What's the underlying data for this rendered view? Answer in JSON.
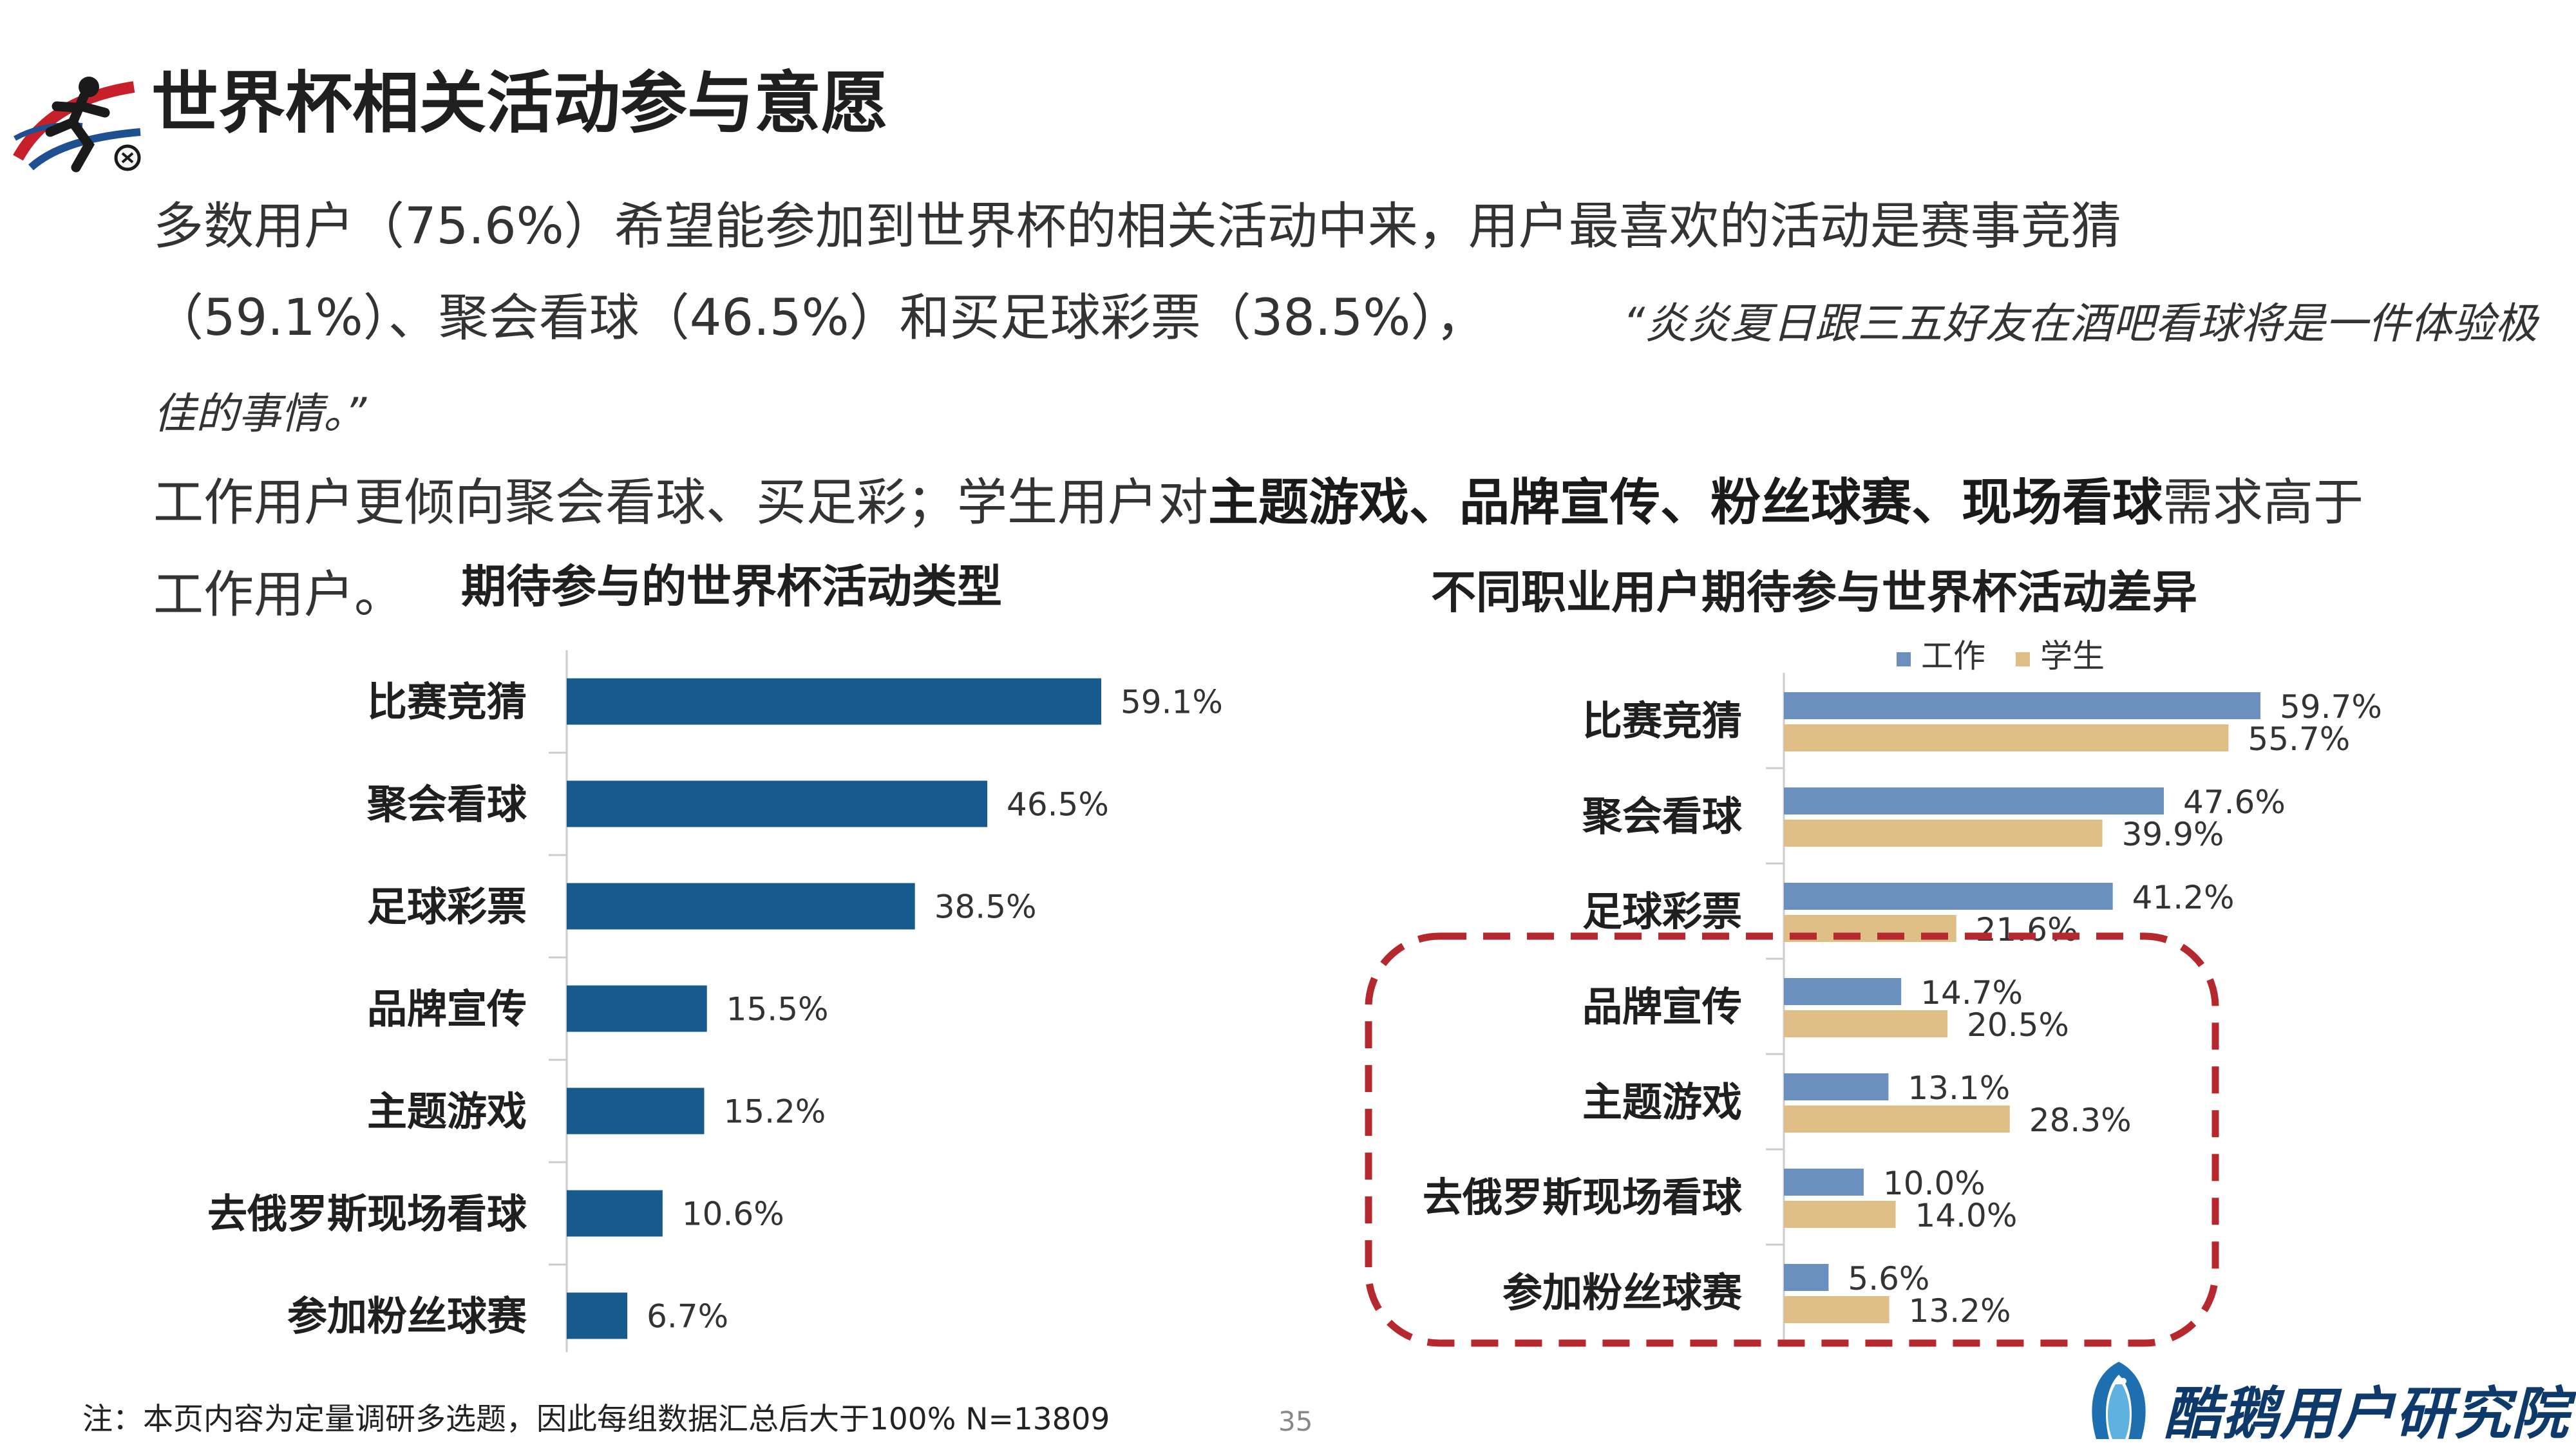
{
  "title": "世界杯相关活动参与意愿",
  "summary": {
    "line1": "多数用户（75.6%）希望能参加到世界杯的相关活动中来，用户最喜欢的活动是赛事竞猜",
    "line2": "（59.1%）、聚会看球（46.5%）和买足球彩票（38.5%），",
    "quote_part1": "“炎炎夏日跟三五好友在酒吧看球将是一件体验极",
    "quote_part2": "佳的事情。”",
    "line3_prefix": "工作用户更倾向聚会看球、买足彩；学生用户对",
    "line3_bold": "主题游戏、品牌宣传、粉丝球赛、现场看球",
    "line3_suffix": "需求高于",
    "line4": "工作用户。"
  },
  "chart_data": [
    {
      "type": "bar",
      "orientation": "horizontal",
      "title": "期待参与的世界杯活动类型",
      "categories": [
        "比赛竞猜",
        "聚会看球",
        "足球彩票",
        "品牌宣传",
        "主题游戏",
        "去俄罗斯现场看球",
        "参加粉丝球赛"
      ],
      "values": [
        59.1,
        46.5,
        38.5,
        15.5,
        15.2,
        10.6,
        6.7
      ],
      "value_labels": [
        "59.1%",
        "46.5%",
        "38.5%",
        "15.5%",
        "15.2%",
        "10.6%",
        "6.7%"
      ],
      "xlim": [
        0,
        70
      ],
      "color": "#165a8e"
    },
    {
      "type": "bar",
      "orientation": "horizontal",
      "title": "不同职业用户期待参与世界杯活动差异",
      "categories": [
        "比赛竞猜",
        "聚会看球",
        "足球彩票",
        "品牌宣传",
        "主题游戏",
        "去俄罗斯现场看球",
        "参加粉丝球赛"
      ],
      "series": [
        {
          "name": "工作",
          "color": "#6b8fbf",
          "values": [
            59.7,
            47.6,
            41.2,
            14.7,
            13.1,
            10.0,
            5.6
          ],
          "value_labels": [
            "59.7%",
            "47.6%",
            "41.2%",
            "14.7%",
            "13.1%",
            "10.0%",
            "5.6%"
          ]
        },
        {
          "name": "学生",
          "color": "#e0bf87",
          "values": [
            55.7,
            39.9,
            21.6,
            20.5,
            28.3,
            14.0,
            13.2
          ],
          "value_labels": [
            "55.7%",
            "39.9%",
            "21.6%",
            "20.5%",
            "28.3%",
            "14.0%",
            "13.2%"
          ]
        }
      ],
      "xlim": [
        0,
        70
      ],
      "highlight_color": "#b5282e"
    }
  ],
  "footnote": "注：本页内容为定量调研多选题，因此每组数据汇总后大于100%    N=13809",
  "page_number": "35",
  "brand": "酷鹅用户研究院"
}
